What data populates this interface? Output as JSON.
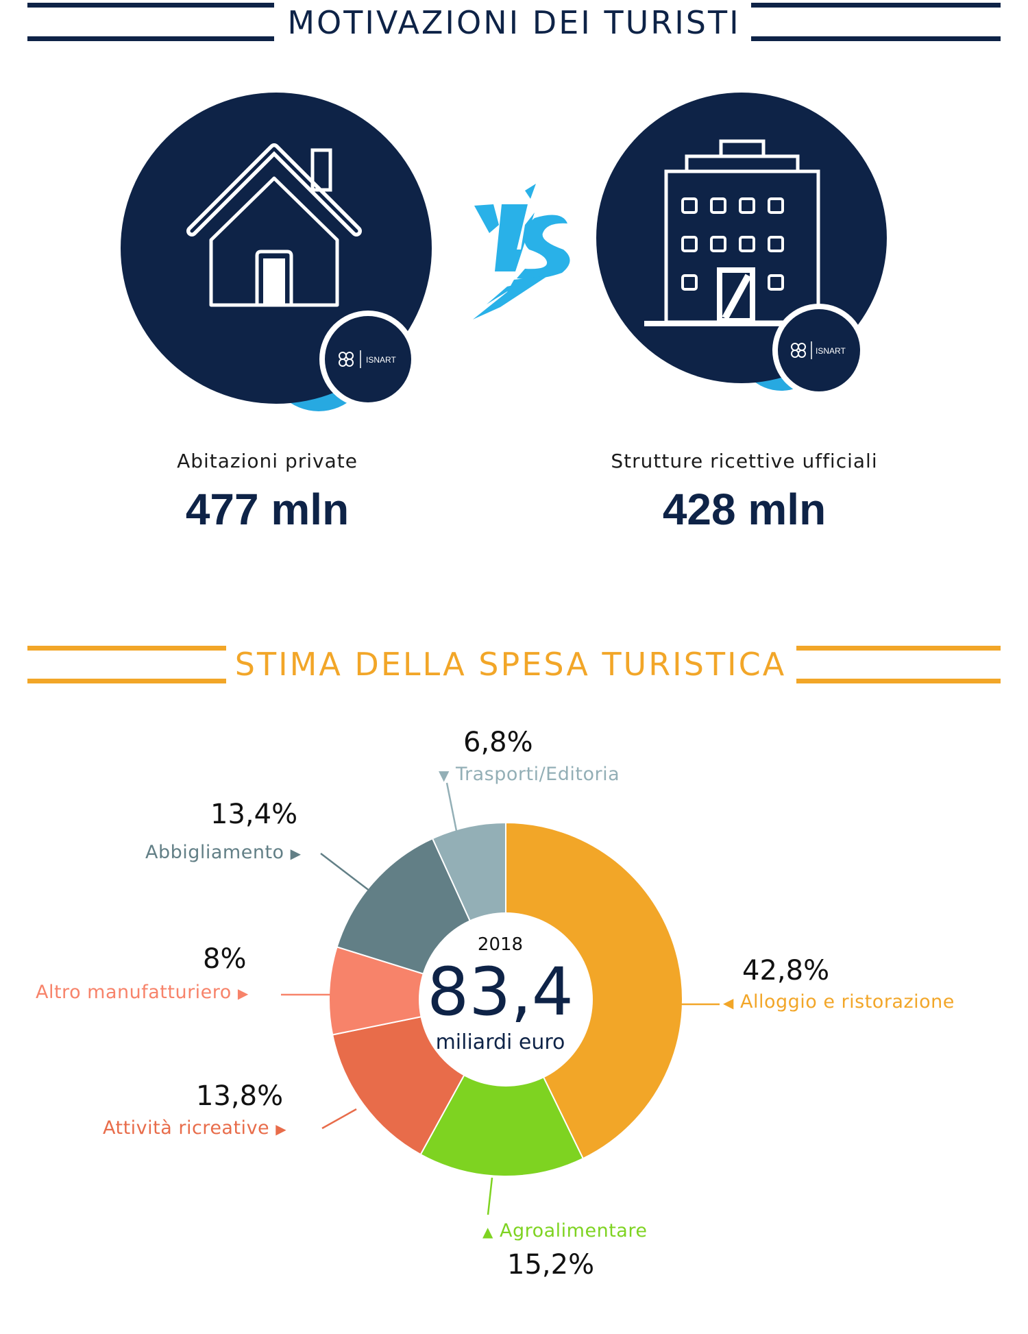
{
  "section1": {
    "title": "MOTIVAZIONI DEI TURISTI",
    "vs_text": "VS",
    "badge_text": "ISNART",
    "left": {
      "label": "Abitazioni private",
      "value": "477 mln",
      "icon": "house-icon"
    },
    "right": {
      "label": "Strutture ricettive ufficiali",
      "value": "428 mln",
      "icon": "building-icon"
    }
  },
  "section2": {
    "title": "STIMA DELLA SPESA TURISTICA"
  },
  "colors": {
    "navy": "#0e2347",
    "sky": "#27a9e1",
    "orange": "#f2a628"
  },
  "chart_data": {
    "type": "pie",
    "variant": "donut",
    "center": {
      "year": "2018",
      "value": "83,4",
      "unit": "miliardi euro"
    },
    "slices": [
      {
        "label": "Alloggio e ristorazione",
        "value": 42.8,
        "display": "42,8%",
        "color": "#f2a628"
      },
      {
        "label": "Agroalimentare",
        "value": 15.2,
        "display": "15,2%",
        "color": "#7ed321"
      },
      {
        "label": "Attività ricreative",
        "value": 13.8,
        "display": "13,8%",
        "color": "#e86c4a"
      },
      {
        "label": "Altro manufatturiero",
        "value": 8,
        "display": "8%",
        "color": "#f7836a"
      },
      {
        "label": "Abbigliamento",
        "value": 13.4,
        "display": "13,4%",
        "color": "#627f86"
      },
      {
        "label": "Trasporti/Editoria",
        "value": 6.8,
        "display": "6,8%",
        "color": "#93afb6"
      }
    ]
  }
}
